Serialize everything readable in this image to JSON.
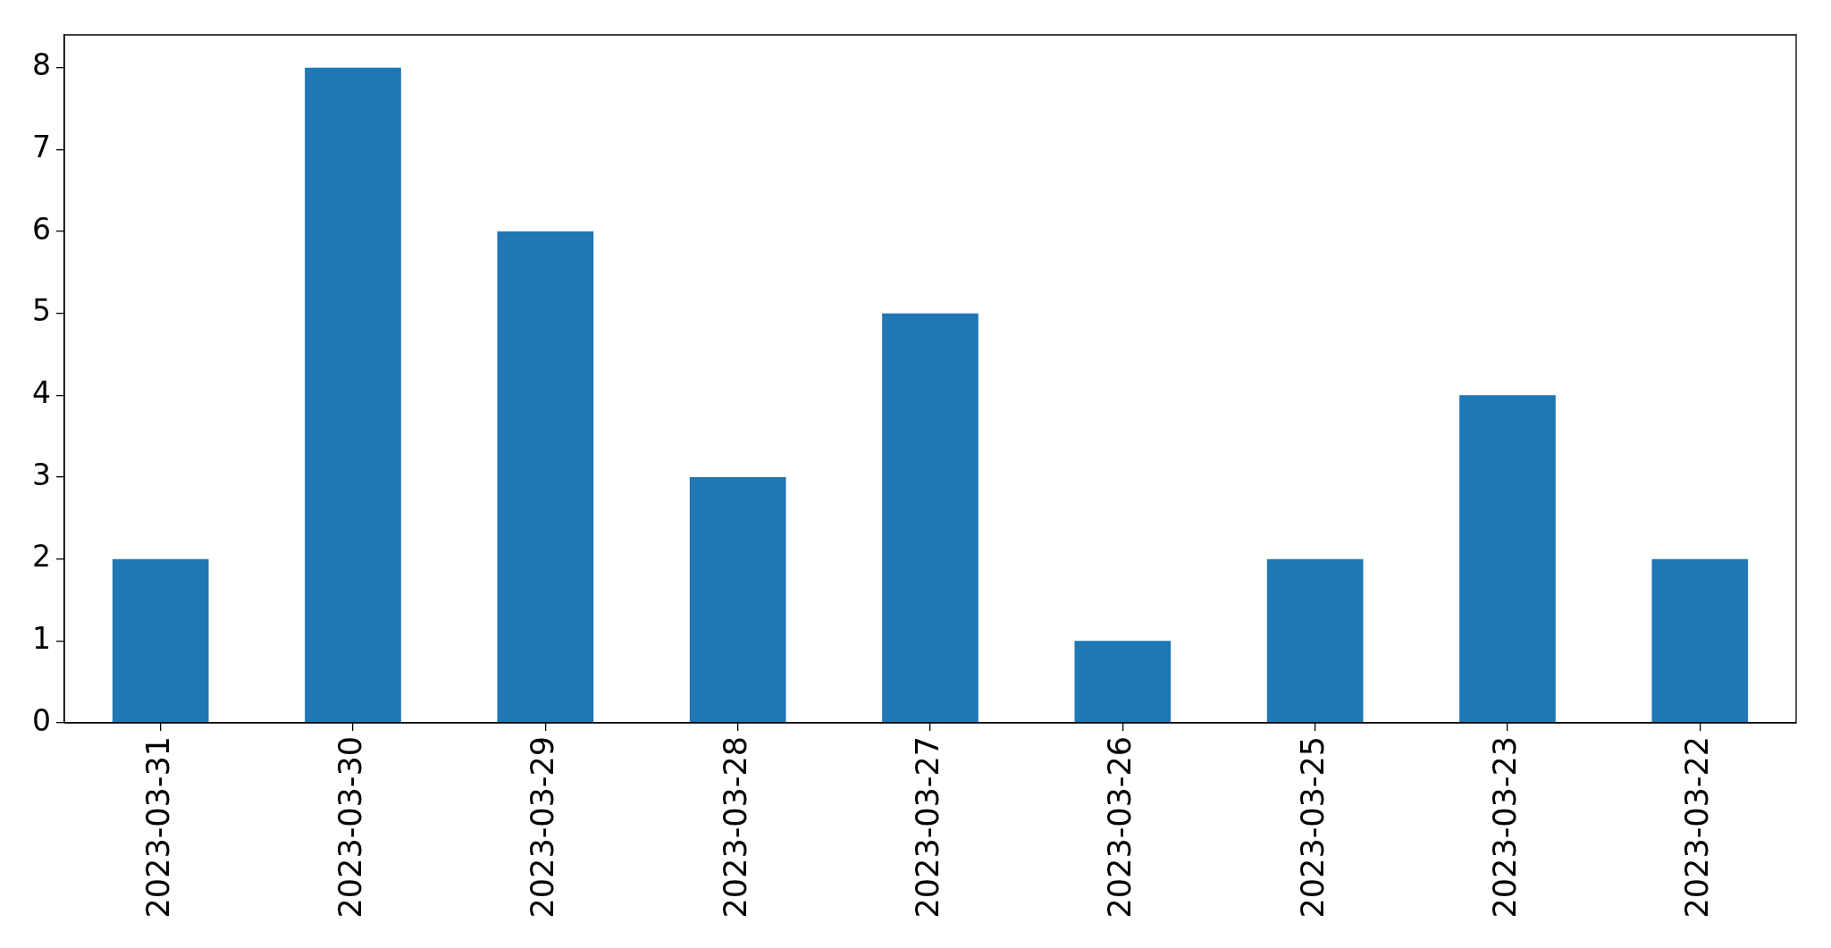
{
  "chart_data": {
    "type": "bar",
    "categories": [
      "2023-03-31",
      "2023-03-30",
      "2023-03-29",
      "2023-03-28",
      "2023-03-27",
      "2023-03-26",
      "2023-03-25",
      "2023-03-23",
      "2023-03-22"
    ],
    "values": [
      2,
      8,
      6,
      3,
      5,
      1,
      2,
      4,
      2
    ],
    "color": "#1f77b4",
    "ylim": [
      0,
      8.4
    ],
    "yticks": [
      0,
      1,
      2,
      3,
      4,
      5,
      6,
      7,
      8
    ]
  }
}
